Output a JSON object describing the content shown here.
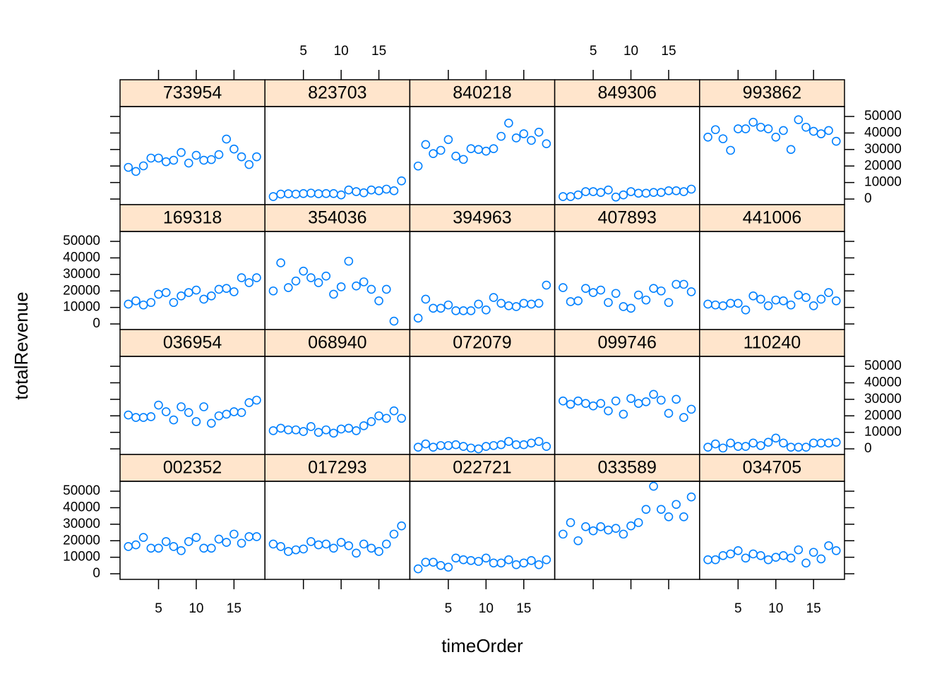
{
  "chart_data": {
    "type": "scatter",
    "x_label": "timeOrder",
    "y_label": "totalRevenue",
    "color": "#0080ff",
    "strip_color": "#ffe5cc",
    "x": [
      1,
      2,
      3,
      4,
      5,
      6,
      7,
      8,
      9,
      10,
      11,
      12,
      13,
      14,
      15,
      16,
      17,
      18
    ],
    "xlim": [
      -0.1,
      19.1
    ],
    "xticks": [
      5,
      10,
      15
    ],
    "ylim": [
      -3400,
      56000
    ],
    "yticks": [
      0,
      10000,
      20000,
      30000,
      40000,
      50000
    ],
    "columns": 5,
    "panels": [
      {
        "title": "733954",
        "values": [
          19200,
          16700,
          20100,
          24800,
          24800,
          22600,
          23500,
          28200,
          21800,
          26500,
          23500,
          23900,
          26900,
          36300,
          30300,
          25600,
          20900,
          25600
        ]
      },
      {
        "title": "823703",
        "values": [
          1500,
          3000,
          3200,
          3000,
          3300,
          3600,
          3200,
          3300,
          3300,
          2500,
          5500,
          4500,
          3800,
          5500,
          5000,
          6000,
          5000,
          11000
        ]
      },
      {
        "title": "840218",
        "values": [
          20000,
          33000,
          27500,
          29500,
          36000,
          26000,
          24000,
          30500,
          30000,
          29000,
          30500,
          38000,
          46000,
          37000,
          39500,
          35500,
          40500,
          33500
        ]
      },
      {
        "title": "849306",
        "values": [
          1500,
          1500,
          2500,
          4500,
          4500,
          4000,
          5500,
          1200,
          2500,
          4500,
          3500,
          3500,
          4000,
          4000,
          5000,
          5000,
          4500,
          6000
        ]
      },
      {
        "title": "993862",
        "values": [
          37500,
          42000,
          36500,
          29500,
          42500,
          42500,
          46500,
          43500,
          42500,
          37500,
          41500,
          30000,
          48000,
          43500,
          41000,
          39500,
          41500,
          35000
        ]
      },
      {
        "title": "169318",
        "values": [
          12000,
          14000,
          11500,
          13000,
          18000,
          19000,
          13000,
          17000,
          19000,
          20500,
          15000,
          17000,
          21000,
          21500,
          19500,
          28000,
          25000,
          28000
        ]
      },
      {
        "title": "354036",
        "values": [
          20000,
          37000,
          22000,
          26000,
          32000,
          28000,
          25000,
          29000,
          18000,
          22500,
          38000,
          23000,
          25500,
          21000,
          14000,
          21000,
          1700,
          null
        ]
      },
      {
        "title": "394963",
        "values": [
          3500,
          15000,
          9500,
          9500,
          11500,
          8000,
          8000,
          8000,
          12000,
          8500,
          16000,
          12500,
          11000,
          10500,
          12500,
          12000,
          12500,
          23500
        ]
      },
      {
        "title": "407893",
        "values": [
          22000,
          13500,
          14000,
          21500,
          19000,
          20500,
          13000,
          18500,
          10500,
          9500,
          17500,
          14500,
          21500,
          20000,
          13000,
          24000,
          24000,
          19500
        ]
      },
      {
        "title": "441006",
        "values": [
          12000,
          11500,
          11000,
          12500,
          12500,
          8500,
          17000,
          15000,
          11000,
          14500,
          14000,
          11500,
          17500,
          16000,
          11000,
          15000,
          19000,
          14000
        ]
      },
      {
        "title": "036954",
        "values": [
          20500,
          19000,
          19000,
          19500,
          26500,
          22500,
          17500,
          25500,
          22000,
          16500,
          25500,
          15500,
          20000,
          21000,
          22500,
          22000,
          28000,
          29500
        ]
      },
      {
        "title": "068940",
        "values": [
          11000,
          12500,
          11500,
          11500,
          10500,
          13500,
          10000,
          11500,
          9500,
          12000,
          12500,
          11000,
          14000,
          16500,
          20000,
          18500,
          23000,
          18500
        ]
      },
      {
        "title": "072079",
        "values": [
          1000,
          3000,
          1000,
          2000,
          2000,
          2500,
          1500,
          500,
          0,
          1500,
          2000,
          2500,
          4500,
          2500,
          2500,
          3500,
          4500,
          1500
        ]
      },
      {
        "title": "099746",
        "values": [
          29000,
          27000,
          29000,
          27500,
          26000,
          27500,
          23000,
          29000,
          21000,
          30500,
          27500,
          28500,
          33000,
          29500,
          21500,
          30000,
          19000,
          24000
        ]
      },
      {
        "title": "110240",
        "values": [
          1000,
          3000,
          500,
          3500,
          1500,
          1500,
          3500,
          2000,
          4000,
          6500,
          3500,
          1000,
          1000,
          1000,
          3500,
          3500,
          3500,
          4000
        ]
      },
      {
        "title": "002352",
        "values": [
          16500,
          17500,
          22000,
          15500,
          15500,
          19500,
          16500,
          14000,
          19500,
          22000,
          15500,
          15500,
          21000,
          19000,
          24000,
          18500,
          22500,
          22500
        ]
      },
      {
        "title": "017293",
        "values": [
          18000,
          16500,
          13500,
          14500,
          15000,
          19500,
          17500,
          18000,
          15500,
          19000,
          17000,
          12500,
          18000,
          15500,
          13500,
          18000,
          24000,
          29000
        ]
      },
      {
        "title": "022721",
        "values": [
          3000,
          7000,
          7000,
          5000,
          4000,
          9500,
          8500,
          8000,
          7500,
          9500,
          6500,
          6500,
          8500,
          5500,
          6500,
          8000,
          5500,
          8500
        ]
      },
      {
        "title": "033589",
        "values": [
          24000,
          31000,
          20000,
          28500,
          26000,
          28500,
          26500,
          27500,
          24000,
          29000,
          31000,
          39000,
          53000,
          39000,
          34500,
          42000,
          34500,
          46500
        ]
      },
      {
        "title": "034705",
        "values": [
          8500,
          8500,
          11000,
          12000,
          14000,
          9500,
          12000,
          11000,
          8500,
          10000,
          11000,
          9500,
          14500,
          6500,
          13000,
          9000,
          17000,
          14000
        ]
      }
    ]
  }
}
